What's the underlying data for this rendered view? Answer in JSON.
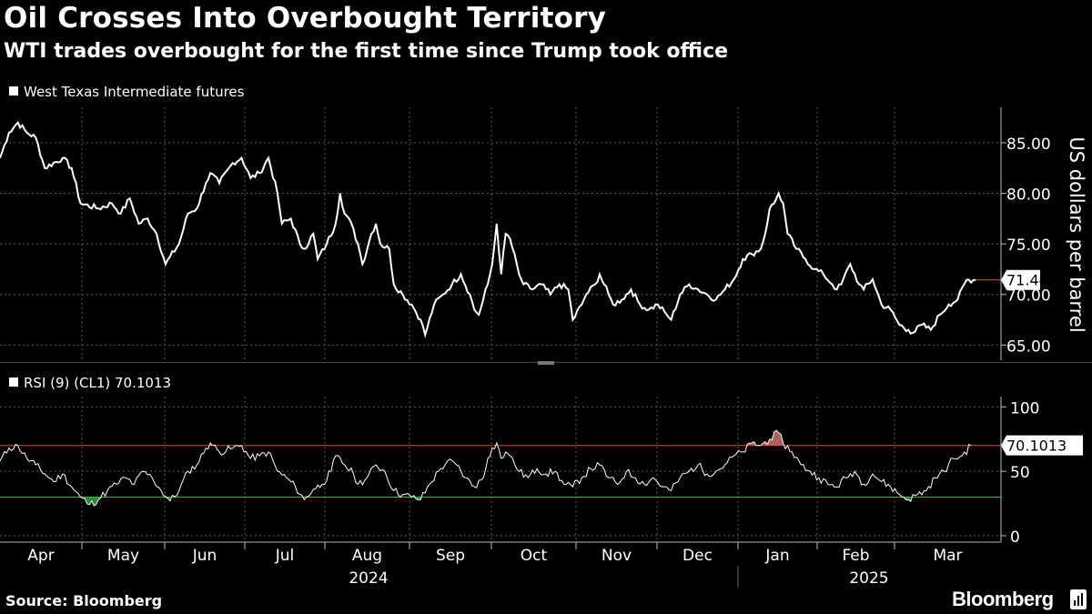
{
  "title": "Oil Crosses Into Overbought Territory",
  "subtitle": "WTI trades overbought for the first time since Trump took office",
  "source": "Source: Bloomberg",
  "brand": "Bloomberg",
  "brand_icon": "bloomberg-terminal-icon",
  "colors": {
    "background": "#000000",
    "line": "#ffffff",
    "grid": "#555555",
    "overbought_line": "#e0453c",
    "oversold_line": "#3fb24a",
    "overbought_fill": "#e88080",
    "oversold_fill": "#3fb24a"
  },
  "chart_data": [
    {
      "type": "line",
      "title": "West Texas Intermediate futures",
      "legend": "West Texas Intermediate futures",
      "legend_position": "top-left",
      "ylabel": "US dollars per barrel",
      "ylim": [
        63.5,
        88.5
      ],
      "yticks": [
        65,
        70,
        75,
        80,
        85
      ],
      "ytick_labels": [
        "65.00",
        "70.00",
        "75.00",
        "80.00",
        "85.00"
      ],
      "last_value": 71.44,
      "last_value_label": "71.44",
      "grid": true,
      "series": [
        {
          "name": "West Texas Intermediate futures",
          "key_points": [
            [
              0,
              83.5
            ],
            [
              2,
              86
            ],
            [
              4,
              87
            ],
            [
              6,
              86
            ],
            [
              8,
              85.5
            ],
            [
              10,
              82.5
            ],
            [
              14,
              83.5
            ],
            [
              16,
              82.5
            ],
            [
              18,
              79
            ],
            [
              22,
              78.5
            ],
            [
              25,
              79
            ],
            [
              27,
              78
            ],
            [
              29,
              79.5
            ],
            [
              31,
              77
            ],
            [
              33,
              77.5
            ],
            [
              35,
              76
            ],
            [
              37,
              73
            ],
            [
              40,
              75
            ],
            [
              42,
              78
            ],
            [
              44,
              78.5
            ],
            [
              46,
              81
            ],
            [
              47,
              82
            ],
            [
              49,
              81
            ],
            [
              52,
              83
            ],
            [
              54,
              83.5
            ],
            [
              56,
              81.5
            ],
            [
              58,
              82
            ],
            [
              60,
              83.5
            ],
            [
              62,
              80
            ],
            [
              63,
              77
            ],
            [
              65,
              77.5
            ],
            [
              67,
              75
            ],
            [
              68,
              74.5
            ],
            [
              70,
              76
            ],
            [
              71,
              73.5
            ],
            [
              73,
              75
            ],
            [
              75,
              77
            ],
            [
              76,
              80
            ],
            [
              77,
              78
            ],
            [
              78,
              77.5
            ],
            [
              80,
              75
            ],
            [
              81,
              73
            ],
            [
              83,
              76
            ],
            [
              84,
              77
            ],
            [
              85,
              75
            ],
            [
              87,
              74.5
            ],
            [
              88,
              71
            ],
            [
              90,
              70
            ],
            [
              92,
              69
            ],
            [
              94,
              67.5
            ],
            [
              95,
              66
            ],
            [
              97,
              69
            ],
            [
              99,
              70
            ],
            [
              101,
              71
            ],
            [
              103,
              72
            ],
            [
              105,
              70
            ],
            [
              106,
              68.5
            ],
            [
              107,
              68
            ],
            [
              109,
              71
            ],
            [
              110,
              73
            ],
            [
              111,
              77
            ],
            [
              112,
              72
            ],
            [
              113,
              76
            ],
            [
              114,
              75.5
            ],
            [
              116,
              72
            ],
            [
              117,
              71
            ],
            [
              119,
              70.5
            ],
            [
              121,
              71
            ],
            [
              123,
              70
            ],
            [
              125,
              71
            ],
            [
              127,
              70.5
            ],
            [
              128,
              67.5
            ],
            [
              130,
              69
            ],
            [
              131,
              70
            ],
            [
              133,
              71
            ],
            [
              134,
              72
            ],
            [
              136,
              70
            ],
            [
              137,
              69
            ],
            [
              139,
              69.5
            ],
            [
              141,
              70.5
            ],
            [
              143,
              69
            ],
            [
              145,
              68.5
            ],
            [
              147,
              69
            ],
            [
              149,
              68
            ],
            [
              150,
              67.5
            ],
            [
              152,
              70
            ],
            [
              154,
              71
            ],
            [
              156,
              70.5
            ],
            [
              158,
              70
            ],
            [
              160,
              69.5
            ],
            [
              162,
              70.5
            ],
            [
              164,
              71.5
            ],
            [
              166,
              73.5
            ],
            [
              168,
              74
            ],
            [
              170,
              74.5
            ],
            [
              171,
              76
            ],
            [
              172,
              78.5
            ],
            [
              173,
              79
            ],
            [
              174,
              80
            ],
            [
              175,
              79
            ],
            [
              176,
              76
            ],
            [
              178,
              74.5
            ],
            [
              180,
              73.5
            ],
            [
              182,
              72.5
            ],
            [
              184,
              72
            ],
            [
              186,
              71
            ],
            [
              187,
              70.5
            ],
            [
              188,
              71
            ],
            [
              190,
              73
            ],
            [
              192,
              71
            ],
            [
              193,
              70.5
            ],
            [
              195,
              71.5
            ],
            [
              197,
              69
            ],
            [
              199,
              68.5
            ],
            [
              201,
              67
            ],
            [
              203,
              66.5
            ],
            [
              204,
              66.2
            ],
            [
              206,
              67
            ],
            [
              208,
              66.5
            ],
            [
              210,
              68
            ],
            [
              212,
              69
            ],
            [
              214,
              69.5
            ],
            [
              216,
              71.44
            ],
            [
              218,
              71.44
            ]
          ]
        }
      ]
    },
    {
      "type": "line",
      "title": "RSI (9) (CL1) 70.1013",
      "legend": "RSI (9) (CL1) 70.1013",
      "legend_position": "top-left",
      "ylim": [
        -5,
        108
      ],
      "yticks": [
        0,
        50,
        100
      ],
      "ytick_labels": [
        "0",
        "50",
        "100"
      ],
      "overbought_level": 70,
      "oversold_level": 30,
      "last_value": 70.1013,
      "last_value_label": "70.1013",
      "grid": true,
      "series": [
        {
          "name": "RSI (9) (CL1)",
          "key_points": [
            [
              0,
              58
            ],
            [
              2,
              68
            ],
            [
              4,
              70
            ],
            [
              6,
              60
            ],
            [
              8,
              55
            ],
            [
              10,
              48
            ],
            [
              12,
              42
            ],
            [
              14,
              48
            ],
            [
              16,
              38
            ],
            [
              18,
              30
            ],
            [
              20,
              24
            ],
            [
              22,
              28
            ],
            [
              24,
              35
            ],
            [
              26,
              40
            ],
            [
              28,
              45
            ],
            [
              30,
              40
            ],
            [
              32,
              50
            ],
            [
              34,
              45
            ],
            [
              36,
              35
            ],
            [
              38,
              27
            ],
            [
              40,
              35
            ],
            [
              42,
              50
            ],
            [
              44,
              55
            ],
            [
              46,
              68
            ],
            [
              47,
              72
            ],
            [
              49,
              65
            ],
            [
              52,
              68
            ],
            [
              54,
              70
            ],
            [
              56,
              60
            ],
            [
              58,
              62
            ],
            [
              60,
              65
            ],
            [
              62,
              50
            ],
            [
              64,
              45
            ],
            [
              66,
              38
            ],
            [
              68,
              28
            ],
            [
              70,
              36
            ],
            [
              72,
              40
            ],
            [
              74,
              50
            ],
            [
              75,
              62
            ],
            [
              77,
              55
            ],
            [
              79,
              48
            ],
            [
              80,
              40
            ],
            [
              82,
              45
            ],
            [
              84,
              55
            ],
            [
              86,
              50
            ],
            [
              88,
              35
            ],
            [
              90,
              32
            ],
            [
              92,
              30
            ],
            [
              94,
              28
            ],
            [
              96,
              40
            ],
            [
              98,
              50
            ],
            [
              100,
              58
            ],
            [
              102,
              55
            ],
            [
              104,
              45
            ],
            [
              106,
              38
            ],
            [
              108,
              45
            ],
            [
              109,
              60
            ],
            [
              110,
              68
            ],
            [
              111,
              72
            ],
            [
              112,
              60
            ],
            [
              113,
              65
            ],
            [
              114,
              62
            ],
            [
              116,
              50
            ],
            [
              118,
              45
            ],
            [
              120,
              52
            ],
            [
              122,
              48
            ],
            [
              124,
              50
            ],
            [
              126,
              40
            ],
            [
              128,
              38
            ],
            [
              130,
              45
            ],
            [
              132,
              52
            ],
            [
              134,
              55
            ],
            [
              136,
              45
            ],
            [
              138,
              40
            ],
            [
              140,
              50
            ],
            [
              142,
              45
            ],
            [
              144,
              40
            ],
            [
              146,
              45
            ],
            [
              148,
              38
            ],
            [
              150,
              35
            ],
            [
              152,
              45
            ],
            [
              154,
              50
            ],
            [
              156,
              55
            ],
            [
              158,
              48
            ],
            [
              160,
              50
            ],
            [
              162,
              55
            ],
            [
              164,
              62
            ],
            [
              166,
              65
            ],
            [
              168,
              72
            ],
            [
              170,
              70
            ],
            [
              172,
              75
            ],
            [
              174,
              80
            ],
            [
              175,
              72
            ],
            [
              177,
              65
            ],
            [
              179,
              55
            ],
            [
              181,
              50
            ],
            [
              183,
              45
            ],
            [
              185,
              40
            ],
            [
              187,
              38
            ],
            [
              189,
              45
            ],
            [
              191,
              50
            ],
            [
              193,
              40
            ],
            [
              195,
              48
            ],
            [
              197,
              42
            ],
            [
              199,
              38
            ],
            [
              201,
              32
            ],
            [
              203,
              28
            ],
            [
              205,
              32
            ],
            [
              207,
              35
            ],
            [
              209,
              45
            ],
            [
              211,
              50
            ],
            [
              213,
              60
            ],
            [
              215,
              62
            ],
            [
              217,
              70.1
            ]
          ]
        }
      ]
    }
  ],
  "x_axis": {
    "months": [
      "Apr",
      "May",
      "Jun",
      "Jul",
      "Aug",
      "Sep",
      "Oct",
      "Nov",
      "Dec",
      "Jan",
      "Feb",
      "Mar"
    ],
    "years": [
      "2024",
      "2025"
    ]
  }
}
